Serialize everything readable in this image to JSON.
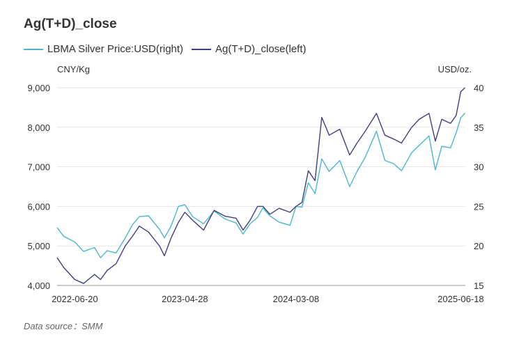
{
  "chart_data": {
    "type": "line",
    "title": "Ag(T+D)_close",
    "series": [
      {
        "name": "LBMA Silver Price:USD(right)",
        "axis": "right",
        "color": "#4ab8c8",
        "x": [
          "2022-05-01",
          "2022-05-20",
          "2022-06-20",
          "2022-07-15",
          "2022-08-15",
          "2022-09-01",
          "2022-09-20",
          "2022-10-15",
          "2022-11-10",
          "2022-12-01",
          "2022-12-20",
          "2023-01-15",
          "2023-02-15",
          "2023-03-01",
          "2023-03-20",
          "2023-04-10",
          "2023-04-28",
          "2023-05-20",
          "2023-06-20",
          "2023-07-20",
          "2023-08-20",
          "2023-09-20",
          "2023-10-10",
          "2023-10-30",
          "2023-11-20",
          "2023-12-05",
          "2023-12-25",
          "2024-01-20",
          "2024-02-20",
          "2024-03-08",
          "2024-03-25",
          "2024-04-12",
          "2024-05-01",
          "2024-05-20",
          "2024-06-10",
          "2024-07-10",
          "2024-08-07",
          "2024-08-28",
          "2024-09-20",
          "2024-10-22",
          "2024-11-15",
          "2024-12-10",
          "2025-01-01",
          "2025-01-30",
          "2025-02-20",
          "2025-03-20",
          "2025-04-07",
          "2025-04-25",
          "2025-05-20",
          "2025-06-05",
          "2025-06-18",
          "2025-06-30"
        ],
        "y": [
          22.3,
          21.2,
          20.5,
          19.3,
          19.8,
          18.5,
          19.4,
          19.1,
          21.0,
          22.7,
          23.7,
          23.8,
          22.1,
          21.0,
          22.5,
          25.0,
          25.2,
          23.7,
          22.8,
          24.4,
          23.4,
          22.9,
          21.5,
          22.8,
          23.6,
          24.8,
          23.8,
          23.0,
          22.6,
          25.0,
          24.9,
          28.0,
          26.6,
          31.0,
          29.4,
          30.8,
          27.5,
          29.4,
          31.2,
          34.5,
          30.8,
          30.4,
          29.5,
          31.8,
          32.7,
          33.9,
          29.6,
          32.6,
          32.4,
          34.3,
          36.2,
          36.8
        ]
      },
      {
        "name": "Ag(T+D)_close(left)",
        "axis": "left",
        "color": "#3f3f80",
        "x": [
          "2022-05-01",
          "2022-05-20",
          "2022-06-20",
          "2022-07-15",
          "2022-08-15",
          "2022-09-01",
          "2022-09-20",
          "2022-10-15",
          "2022-11-10",
          "2022-12-01",
          "2022-12-20",
          "2023-01-15",
          "2023-02-15",
          "2023-03-01",
          "2023-03-20",
          "2023-04-10",
          "2023-04-28",
          "2023-05-20",
          "2023-06-20",
          "2023-07-20",
          "2023-08-20",
          "2023-09-20",
          "2023-10-10",
          "2023-10-30",
          "2023-11-20",
          "2023-12-05",
          "2023-12-25",
          "2024-01-20",
          "2024-02-20",
          "2024-03-08",
          "2024-03-25",
          "2024-04-12",
          "2024-05-01",
          "2024-05-20",
          "2024-06-10",
          "2024-07-10",
          "2024-08-07",
          "2024-08-28",
          "2024-09-20",
          "2024-10-22",
          "2024-11-15",
          "2024-12-10",
          "2025-01-01",
          "2025-01-30",
          "2025-02-20",
          "2025-03-20",
          "2025-04-07",
          "2025-04-25",
          "2025-05-20",
          "2025-06-05",
          "2025-06-18",
          "2025-06-30"
        ],
        "y": [
          4700,
          4450,
          4150,
          4050,
          4280,
          4150,
          4380,
          4550,
          5000,
          5250,
          5500,
          5350,
          5000,
          4750,
          5200,
          5600,
          5850,
          5650,
          5400,
          5900,
          5750,
          5700,
          5400,
          5650,
          6000,
          6000,
          5800,
          5950,
          5850,
          6000,
          6100,
          6900,
          6650,
          8250,
          7800,
          7950,
          7300,
          7600,
          7900,
          8350,
          7800,
          7700,
          7600,
          8000,
          8200,
          8350,
          7650,
          8200,
          8100,
          8300,
          8900,
          9000
        ]
      }
    ],
    "x_ticks": [
      "2022-06-20",
      "2023-04-28",
      "2024-03-08",
      "2025-06-18"
    ],
    "y_left_ticks": [
      "4,000",
      "5,000",
      "6,000",
      "7,000",
      "8,000",
      "9,000"
    ],
    "y_right_ticks": [
      "15",
      "20",
      "25",
      "30",
      "35",
      "40"
    ],
    "ylim_left": [
      4000,
      9000
    ],
    "ylim_right": [
      15,
      40
    ],
    "xlim": [
      "2022-05-01",
      "2025-07-01"
    ],
    "ylabel_left": "CNY/Kg",
    "ylabel_right": "USD/oz.",
    "grid": true,
    "legend_position": "top-left"
  },
  "footer": {
    "source": "Data source：SMM"
  }
}
